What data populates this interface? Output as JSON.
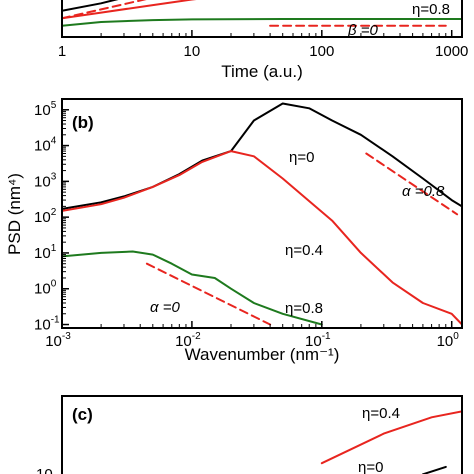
{
  "chart_data": [
    {
      "panel_label": "",
      "type": "line",
      "xscale": "log",
      "xlabel": "Time (a.u.)",
      "ylabel": "",
      "xlim": [
        1,
        1200
      ],
      "ylim": [
        0.6,
        1.8
      ],
      "xticks": [
        1,
        10,
        100,
        1000
      ],
      "xticklabels": [
        "1",
        "10",
        "100",
        "1000"
      ],
      "series": [
        {
          "name": "",
          "color": "#000000",
          "style": "solid",
          "x": [
            1,
            2,
            3,
            5
          ],
          "y": [
            1.3,
            1.5,
            1.65,
            1.85
          ]
        },
        {
          "name": "",
          "color": "#e8251f",
          "style": "solid",
          "x": [
            1,
            2,
            5,
            10,
            30
          ],
          "y": [
            1.1,
            1.25,
            1.45,
            1.6,
            1.78
          ]
        },
        {
          "name": "",
          "color": "#1e7a1e",
          "style": "solid",
          "x": [
            1,
            2,
            5,
            10,
            50,
            200,
            1200
          ],
          "y": [
            0.9,
            1.0,
            1.05,
            1.07,
            1.08,
            1.08,
            1.08
          ]
        },
        {
          "name": "",
          "color": "#e8251f",
          "style": "dashed",
          "x": [
            1,
            5
          ],
          "y": [
            1.1,
            1.65
          ]
        },
        {
          "name": "",
          "color": "#e8251f",
          "style": "dashed",
          "x": [
            40,
            900
          ],
          "y": [
            0.9,
            0.9
          ]
        }
      ],
      "annotations": [
        "η=0.8",
        "β =0"
      ]
    },
    {
      "panel_label": "(b)",
      "type": "line",
      "xscale": "log",
      "yscale": "log",
      "xlabel": "Wavenumber (nm⁻¹)",
      "ylabel": "PSD (nm⁴)",
      "xlim": [
        0.001,
        1.2
      ],
      "ylim": [
        0.08,
        200000
      ],
      "xticks": [
        0.001,
        0.01,
        0.1,
        1
      ],
      "xtick_mantissa": [
        "10",
        "10",
        "10",
        "10"
      ],
      "xtick_exponent": [
        "-3",
        "-2",
        "-1",
        "0"
      ],
      "yticks": [
        0.1,
        1,
        10,
        100,
        1000,
        10000,
        100000
      ],
      "ytick_mantissa": [
        "10",
        "10",
        "10",
        "10",
        "10",
        "10",
        "10"
      ],
      "ytick_exponent": [
        "-1",
        "0",
        "1",
        "2",
        "3",
        "4",
        "5"
      ],
      "series": [
        {
          "name": "η=0",
          "color": "#000000",
          "style": "solid",
          "x": [
            0.001,
            0.002,
            0.003,
            0.005,
            0.008,
            0.012,
            0.02,
            0.03,
            0.05,
            0.08,
            0.12,
            0.2,
            0.35,
            0.6,
            1.0,
            1.2
          ],
          "y": [
            170,
            260,
            380,
            700,
            1600,
            3800,
            7000,
            50000,
            150000,
            110000,
            50000,
            20000,
            5000,
            1200,
            300,
            200
          ]
        },
        {
          "name": "η=0.4",
          "color": "#e8251f",
          "style": "solid",
          "x": [
            0.001,
            0.002,
            0.003,
            0.005,
            0.008,
            0.012,
            0.02,
            0.03,
            0.05,
            0.08,
            0.12,
            0.2,
            0.35,
            0.6,
            1.0,
            1.2
          ],
          "y": [
            150,
            230,
            350,
            700,
            1500,
            3500,
            7000,
            5000,
            1200,
            280,
            80,
            10,
            1.5,
            0.4,
            0.2,
            0.1
          ]
        },
        {
          "name": "η=0.8",
          "color": "#1e7a1e",
          "style": "solid",
          "x": [
            0.001,
            0.002,
            0.0035,
            0.005,
            0.007,
            0.01,
            0.015,
            0.02,
            0.03,
            0.05,
            0.1
          ],
          "y": [
            8,
            10,
            11,
            9,
            5,
            2.5,
            2.0,
            1.0,
            0.4,
            0.2,
            0.1
          ]
        },
        {
          "name": "α =0.8",
          "color": "#e8251f",
          "style": "dashed",
          "x": [
            0.22,
            1.1
          ],
          "y": [
            6000,
            120
          ]
        },
        {
          "name": "α =0",
          "color": "#e8251f",
          "style": "dashed",
          "x": [
            0.0045,
            0.04
          ],
          "y": [
            5,
            0.1
          ]
        }
      ],
      "annotations": [
        "η=0",
        "η=0.4",
        "η=0.8",
        "α =0.8",
        "α =0"
      ]
    },
    {
      "panel_label": "(c)",
      "type": "line",
      "xscale": "log",
      "xlim": [
        1,
        1200
      ],
      "ylim": [
        0,
        1
      ],
      "ytick_partial": "10",
      "series": [
        {
          "name": "η=0.4",
          "color": "#e8251f",
          "style": "solid",
          "x": [
            100,
            300,
            700,
            1200
          ],
          "y": [
            0.2,
            0.6,
            0.82,
            0.9
          ]
        },
        {
          "name": "η=0",
          "color": "#000000",
          "style": "solid",
          "x": [
            600,
            900
          ],
          "y": [
            0.05,
            0.15
          ]
        }
      ],
      "annotations": [
        "η=0.4",
        "η=0"
      ]
    }
  ]
}
